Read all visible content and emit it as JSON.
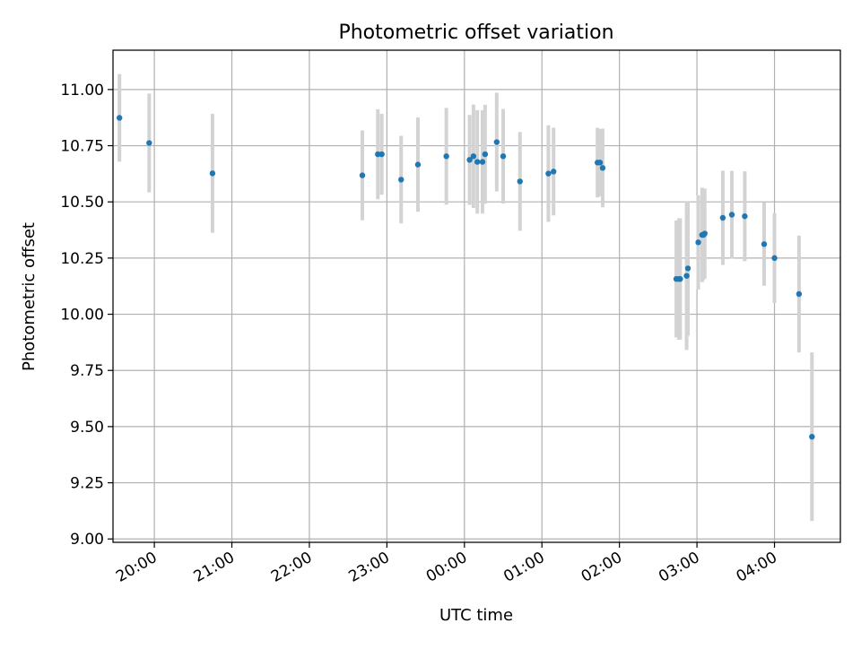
{
  "chart_data": {
    "type": "scatter",
    "title": "Photometric offset variation",
    "xlabel": "UTC time",
    "ylabel": "Photometric offset",
    "xlim": [
      "19:28",
      "04:51"
    ],
    "ylim": [
      8.985,
      11.175
    ],
    "x_ticks": [
      "20:00",
      "21:00",
      "22:00",
      "23:00",
      "00:00",
      "01:00",
      "02:00",
      "03:00",
      "04:00"
    ],
    "y_ticks": [
      "9.00",
      "9.25",
      "9.50",
      "9.75",
      "10.00",
      "10.25",
      "10.50",
      "10.75",
      "11.00"
    ],
    "grid": true,
    "colors": {
      "points": "#1f77b4",
      "error_bars": "#d3d3d3",
      "grid": "#b0b0b0",
      "axes": "#000000"
    },
    "series": [
      {
        "points": [
          {
            "time": "19:33",
            "value": 10.874,
            "err": 0.195
          },
          {
            "time": "19:56",
            "value": 10.762,
            "err": 0.22
          },
          {
            "time": "20:45",
            "value": 10.627,
            "err": 0.265
          },
          {
            "time": "22:41",
            "value": 10.618,
            "err": 0.2
          },
          {
            "time": "22:53",
            "value": 10.712,
            "err": 0.2
          },
          {
            "time": "22:56",
            "value": 10.712,
            "err": 0.18
          },
          {
            "time": "23:11",
            "value": 10.599,
            "err": 0.195
          },
          {
            "time": "23:24",
            "value": 10.666,
            "err": 0.21
          },
          {
            "time": "23:46",
            "value": 10.703,
            "err": 0.215
          },
          {
            "time": "00:04",
            "value": 10.687,
            "err": 0.2
          },
          {
            "time": "00:07",
            "value": 10.703,
            "err": 0.23
          },
          {
            "time": "00:10",
            "value": 10.678,
            "err": 0.23
          },
          {
            "time": "00:14",
            "value": 10.678,
            "err": 0.23
          },
          {
            "time": "00:16",
            "value": 10.712,
            "err": 0.22
          },
          {
            "time": "00:25",
            "value": 10.766,
            "err": 0.22
          },
          {
            "time": "00:30",
            "value": 10.703,
            "err": 0.21
          },
          {
            "time": "00:43",
            "value": 10.591,
            "err": 0.22
          },
          {
            "time": "01:05",
            "value": 10.626,
            "err": 0.215
          },
          {
            "time": "01:09",
            "value": 10.635,
            "err": 0.195
          },
          {
            "time": "01:43",
            "value": 10.675,
            "err": 0.155
          },
          {
            "time": "01:45",
            "value": 10.675,
            "err": 0.15
          },
          {
            "time": "01:47",
            "value": 10.651,
            "err": 0.175
          },
          {
            "time": "02:44",
            "value": 10.157,
            "err": 0.26
          },
          {
            "time": "02:46",
            "value": 10.157,
            "err": 0.27
          },
          {
            "time": "02:47",
            "value": 10.157,
            "err": 0.27
          },
          {
            "time": "02:52",
            "value": 10.171,
            "err": 0.33
          },
          {
            "time": "02:53",
            "value": 10.204,
            "err": 0.3
          },
          {
            "time": "03:01",
            "value": 10.32,
            "err": 0.21
          },
          {
            "time": "03:04",
            "value": 10.353,
            "err": 0.21
          },
          {
            "time": "03:05",
            "value": 10.353,
            "err": 0.2
          },
          {
            "time": "03:06",
            "value": 10.359,
            "err": 0.2
          },
          {
            "time": "03:20",
            "value": 10.429,
            "err": 0.21
          },
          {
            "time": "03:27",
            "value": 10.443,
            "err": 0.195
          },
          {
            "time": "03:37",
            "value": 10.436,
            "err": 0.2
          },
          {
            "time": "03:52",
            "value": 10.312,
            "err": 0.185
          },
          {
            "time": "04:00",
            "value": 10.25,
            "err": 0.2
          },
          {
            "time": "04:19",
            "value": 10.09,
            "err": 0.26
          },
          {
            "time": "04:29",
            "value": 9.455,
            "err": 0.375
          }
        ]
      }
    ]
  }
}
